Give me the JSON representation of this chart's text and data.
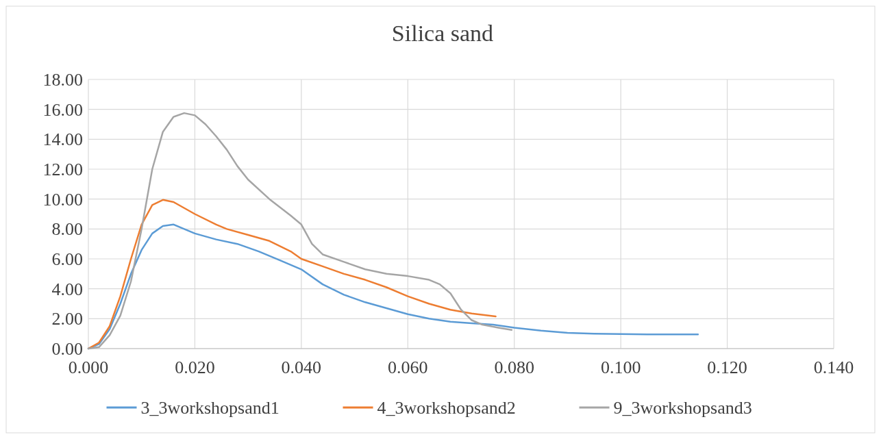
{
  "chart_data": {
    "type": "line",
    "title": "Silica sand",
    "xlim": [
      0,
      0.14
    ],
    "xticks": [
      {
        "value": 0,
        "label": "0.000"
      },
      {
        "value": 0.02,
        "label": "0.020"
      },
      {
        "value": 0.04,
        "label": "0.040"
      },
      {
        "value": 0.06,
        "label": "0.060"
      },
      {
        "value": 0.08,
        "label": "0.080"
      },
      {
        "value": 0.1,
        "label": "0.100"
      },
      {
        "value": 0.12,
        "label": "0.120"
      },
      {
        "value": 0.14,
        "label": "0.140"
      }
    ],
    "ylim": [
      0,
      18
    ],
    "yticks": [
      {
        "value": 0,
        "label": "0.00"
      },
      {
        "value": 2,
        "label": "2.00"
      },
      {
        "value": 4,
        "label": "4.00"
      },
      {
        "value": 6,
        "label": "6.00"
      },
      {
        "value": 8,
        "label": "8.00"
      },
      {
        "value": 10,
        "label": "10.00"
      },
      {
        "value": 12,
        "label": "12.00"
      },
      {
        "value": 14,
        "label": "14.00"
      },
      {
        "value": 16,
        "label": "16.00"
      },
      {
        "value": 18,
        "label": "18.00"
      }
    ],
    "grid": true,
    "legend": "bottom",
    "marker": "none",
    "line_style": "solid",
    "series": [
      {
        "name": "3_3workshopsand1",
        "color": "#5b9bd5",
        "x": [
          0,
          0.002,
          0.004,
          0.006,
          0.008,
          0.01,
          0.012,
          0.014,
          0.016,
          0.018,
          0.02,
          0.024,
          0.028,
          0.032,
          0.036,
          0.04,
          0.044,
          0.048,
          0.052,
          0.056,
          0.06,
          0.064,
          0.068,
          0.072,
          0.076,
          0.08,
          0.085,
          0.09,
          0.095,
          0.1,
          0.105,
          0.11,
          0.1145
        ],
        "values": [
          0,
          0.3,
          1.3,
          3,
          5,
          6.6,
          7.7,
          8.2,
          8.3,
          8,
          7.7,
          7.3,
          7,
          6.5,
          5.9,
          5.3,
          4.3,
          3.6,
          3.1,
          2.7,
          2.3,
          2,
          1.8,
          1.7,
          1.6,
          1.4,
          1.2,
          1.05,
          1,
          0.97,
          0.95,
          0.95,
          0.95
        ]
      },
      {
        "name": "4_3workshopsand2",
        "color": "#ed7d31",
        "x": [
          0,
          0.002,
          0.004,
          0.006,
          0.008,
          0.01,
          0.012,
          0.014,
          0.016,
          0.018,
          0.02,
          0.024,
          0.026,
          0.03,
          0.034,
          0.038,
          0.04,
          0.044,
          0.048,
          0.052,
          0.056,
          0.06,
          0.064,
          0.068,
          0.072,
          0.0765
        ],
        "values": [
          0,
          0.4,
          1.5,
          3.5,
          6,
          8.3,
          9.6,
          9.95,
          9.8,
          9.4,
          9,
          8.3,
          8,
          7.6,
          7.2,
          6.5,
          6,
          5.5,
          5,
          4.6,
          4.1,
          3.5,
          3,
          2.6,
          2.35,
          2.15
        ]
      },
      {
        "name": "9_3workshopsand3",
        "color": "#a5a5a5",
        "x": [
          0,
          0.002,
          0.004,
          0.006,
          0.008,
          0.01,
          0.012,
          0.014,
          0.016,
          0.018,
          0.02,
          0.022,
          0.024,
          0.026,
          0.028,
          0.03,
          0.034,
          0.038,
          0.04,
          0.042,
          0.044,
          0.048,
          0.052,
          0.056,
          0.06,
          0.064,
          0.066,
          0.068,
          0.07,
          0.072,
          0.074,
          0.077,
          0.0795
        ],
        "values": [
          0,
          0.1,
          0.9,
          2.2,
          4.5,
          8,
          12,
          14.5,
          15.5,
          15.75,
          15.6,
          15,
          14.2,
          13.3,
          12.2,
          11.3,
          10,
          8.9,
          8.3,
          7,
          6.3,
          5.8,
          5.3,
          5,
          4.85,
          4.6,
          4.3,
          3.7,
          2.6,
          1.9,
          1.6,
          1.4,
          1.25
        ]
      }
    ]
  }
}
